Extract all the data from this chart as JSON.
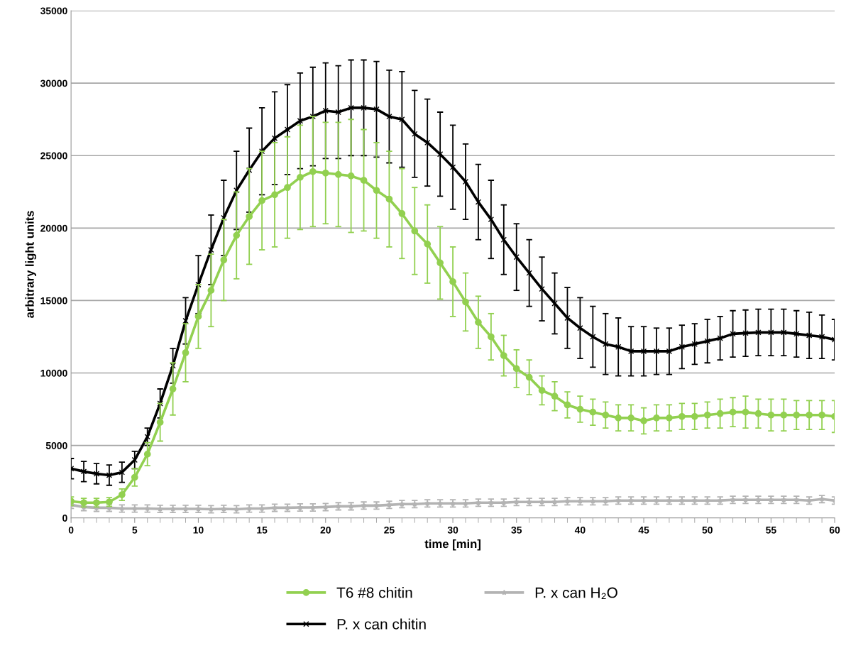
{
  "chart_data": {
    "type": "line",
    "xlabel": "time [min]",
    "ylabel": "arbitrary light units",
    "x": [
      0,
      1,
      2,
      3,
      4,
      5,
      6,
      7,
      8,
      9,
      10,
      11,
      12,
      13,
      14,
      15,
      16,
      17,
      18,
      19,
      20,
      21,
      22,
      23,
      24,
      25,
      26,
      27,
      28,
      29,
      30,
      31,
      32,
      33,
      34,
      35,
      36,
      37,
      38,
      39,
      40,
      41,
      42,
      43,
      44,
      45,
      46,
      47,
      48,
      49,
      50,
      51,
      52,
      53,
      54,
      55,
      56,
      57,
      58,
      59,
      60
    ],
    "xlim": [
      0,
      60
    ],
    "xticks": [
      0,
      5,
      10,
      15,
      20,
      25,
      30,
      35,
      40,
      45,
      50,
      55,
      60
    ],
    "ylim": [
      0,
      35000
    ],
    "yticks": [
      0,
      5000,
      10000,
      15000,
      20000,
      25000,
      30000,
      35000
    ],
    "grid": "y",
    "legend": "bottom",
    "line_style": "solid",
    "series": [
      {
        "name": "T6 #8 chitin",
        "color": "#92d050",
        "marker": "circle",
        "values": [
          1150,
          1050,
          1050,
          1100,
          1600,
          2800,
          4400,
          6600,
          8900,
          11400,
          13900,
          15700,
          17800,
          19500,
          20800,
          21900,
          22300,
          22800,
          23500,
          23900,
          23800,
          23700,
          23600,
          23300,
          22600,
          22000,
          21000,
          19800,
          18900,
          17600,
          16300,
          14900,
          13500,
          12500,
          11200,
          10300,
          9700,
          8800,
          8400,
          7800,
          7500,
          7300,
          7100,
          6900,
          6900,
          6700,
          6900,
          6900,
          7000,
          7000,
          7100,
          7200,
          7300,
          7300,
          7200,
          7100,
          7100,
          7100,
          7100,
          7100,
          7000
        ],
        "errors": [
          300,
          300,
          300,
          300,
          400,
          600,
          800,
          1300,
          1800,
          2000,
          2200,
          2500,
          2800,
          3000,
          3300,
          3400,
          3600,
          3500,
          3600,
          3800,
          3500,
          3600,
          3900,
          3500,
          3300,
          3300,
          3100,
          3000,
          2700,
          2500,
          2400,
          2000,
          1800,
          1600,
          1400,
          1300,
          1200,
          1000,
          1000,
          900,
          900,
          900,
          900,
          900,
          900,
          900,
          900,
          900,
          900,
          900,
          900,
          1000,
          1000,
          1100,
          1000,
          1100,
          1100,
          1000,
          1000,
          1000,
          1100
        ]
      },
      {
        "name": "P. x can chitin",
        "color": "#000000",
        "marker": "cross",
        "values": [
          3400,
          3200,
          3050,
          2950,
          3150,
          4000,
          5600,
          7900,
          10500,
          13600,
          16100,
          18500,
          20700,
          22600,
          24000,
          25300,
          26200,
          26800,
          27400,
          27700,
          28100,
          28000,
          28300,
          28300,
          28200,
          27700,
          27500,
          26500,
          25900,
          25100,
          24200,
          23200,
          21800,
          20600,
          19200,
          18000,
          16900,
          15800,
          14800,
          13800,
          13100,
          12500,
          12000,
          11800,
          11500,
          11500,
          11500,
          11500,
          11800,
          12000,
          12200,
          12400,
          12700,
          12750,
          12800,
          12800,
          12800,
          12700,
          12600,
          12500,
          12300
        ],
        "errors": [
          700,
          700,
          700,
          700,
          700,
          600,
          600,
          1000,
          1200,
          1600,
          2000,
          2400,
          2600,
          2700,
          2900,
          3000,
          3200,
          3100,
          3300,
          3400,
          3300,
          3200,
          3300,
          3300,
          3300,
          3200,
          3300,
          3000,
          3000,
          2900,
          2900,
          2600,
          2600,
          2700,
          2400,
          2300,
          2300,
          2200,
          2100,
          2100,
          2100,
          2100,
          2100,
          2000,
          1700,
          1700,
          1600,
          1600,
          1500,
          1400,
          1500,
          1500,
          1600,
          1600,
          1600,
          1600,
          1600,
          1600,
          1600,
          1500,
          1400
        ]
      },
      {
        "name": "P. x can H₂O",
        "color": "#b3b3b3",
        "marker": "star",
        "values": [
          900,
          750,
          700,
          700,
          650,
          650,
          650,
          620,
          620,
          620,
          620,
          600,
          620,
          600,
          650,
          650,
          700,
          700,
          720,
          720,
          750,
          800,
          800,
          850,
          850,
          900,
          950,
          950,
          1000,
          1000,
          1000,
          1000,
          1050,
          1050,
          1050,
          1100,
          1100,
          1100,
          1100,
          1150,
          1150,
          1150,
          1150,
          1200,
          1200,
          1200,
          1200,
          1200,
          1200,
          1200,
          1200,
          1200,
          1250,
          1250,
          1250,
          1250,
          1250,
          1250,
          1200,
          1300,
          1200
        ],
        "errors": [
          250,
          250,
          250,
          250,
          250,
          250,
          250,
          250,
          250,
          250,
          250,
          250,
          250,
          250,
          250,
          250,
          250,
          250,
          250,
          250,
          250,
          250,
          250,
          250,
          250,
          250,
          250,
          250,
          250,
          250,
          250,
          250,
          250,
          250,
          250,
          250,
          250,
          250,
          250,
          250,
          250,
          250,
          250,
          250,
          250,
          250,
          250,
          250,
          250,
          250,
          250,
          250,
          250,
          250,
          250,
          250,
          250,
          250,
          250,
          250,
          250
        ]
      }
    ]
  }
}
